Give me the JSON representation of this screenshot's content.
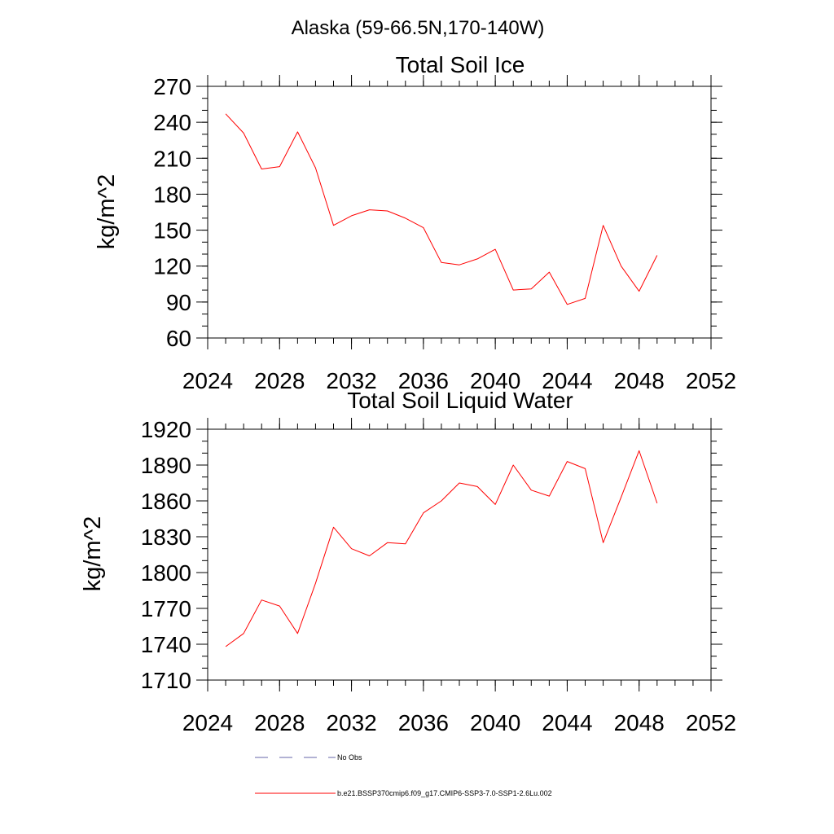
{
  "figure": {
    "title": "Alaska (59-66.5N,170-140W)"
  },
  "chart_data": [
    {
      "type": "line",
      "title": "Total Soil Ice",
      "xlabel": "",
      "ylabel": "kg/m^2",
      "xlim": [
        2024,
        2052
      ],
      "ylim": [
        60,
        270
      ],
      "xticks": [
        "2024",
        "2028",
        "2032",
        "2036",
        "2040",
        "2044",
        "2048",
        "2052"
      ],
      "yticks": [
        "60",
        "90",
        "120",
        "150",
        "180",
        "210",
        "240",
        "270"
      ],
      "x": [
        2025,
        2026,
        2027,
        2028,
        2029,
        2030,
        2031,
        2032,
        2033,
        2034,
        2035,
        2036,
        2037,
        2038,
        2039,
        2040,
        2041,
        2042,
        2043,
        2044,
        2045,
        2046,
        2047,
        2048,
        2049
      ],
      "series": [
        {
          "color": "#ff0000",
          "values": [
            247,
            231,
            201,
            203,
            232,
            202,
            154,
            162,
            167,
            166,
            160,
            152,
            123,
            121,
            126,
            134,
            100,
            101,
            115,
            88,
            93,
            154,
            120,
            99,
            129
          ]
        }
      ]
    },
    {
      "type": "line",
      "title": "Total Soil Liquid Water",
      "xlabel": "",
      "ylabel": "kg/m^2",
      "xlim": [
        2024,
        2052
      ],
      "ylim": [
        1710,
        1920
      ],
      "xticks": [
        "2024",
        "2028",
        "2032",
        "2036",
        "2040",
        "2044",
        "2048",
        "2052"
      ],
      "yticks": [
        "1710",
        "1740",
        "1770",
        "1800",
        "1830",
        "1860",
        "1890",
        "1920"
      ],
      "x": [
        2025,
        2026,
        2027,
        2028,
        2029,
        2030,
        2031,
        2032,
        2033,
        2034,
        2035,
        2036,
        2037,
        2038,
        2039,
        2040,
        2041,
        2042,
        2043,
        2044,
        2045,
        2046,
        2047,
        2048,
        2049
      ],
      "series": [
        {
          "color": "#ff0000",
          "values": [
            1738,
            1749,
            1777,
            1772,
            1749,
            1791,
            1838,
            1820,
            1814,
            1825,
            1824,
            1850,
            1860,
            1875,
            1872,
            1857,
            1890,
            1869,
            1864,
            1893,
            1887,
            1825,
            1863,
            1902,
            1858
          ]
        }
      ]
    }
  ],
  "legend": [
    {
      "label": "No Obs",
      "color": "#6666aa",
      "style": "dashed"
    },
    {
      "label": "b.e21.BSSP370cmip6.f09_g17.CMIP6-SSP3-7.0-SSP1-2.6Lu.002",
      "color": "#ff0000",
      "style": "solid"
    }
  ]
}
